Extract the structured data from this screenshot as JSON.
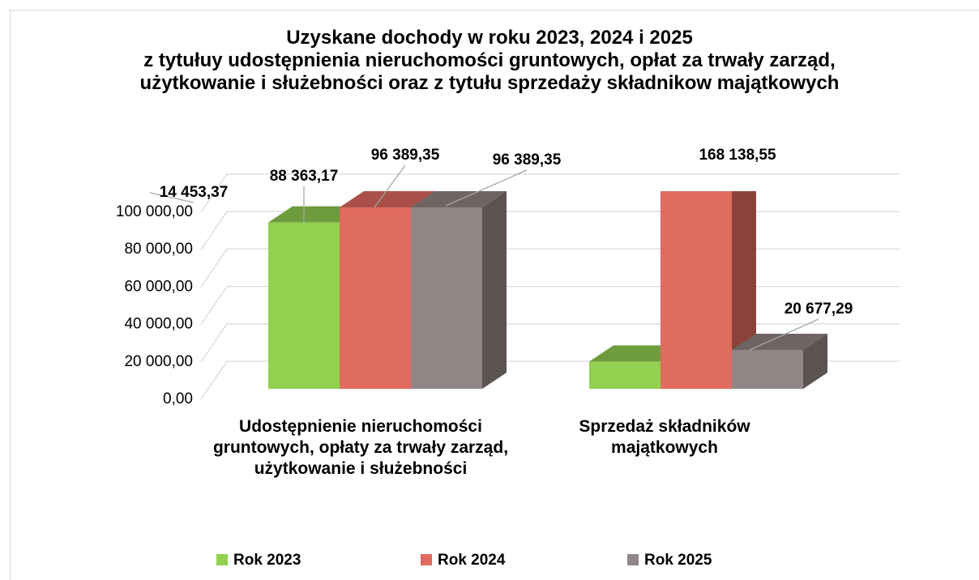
{
  "chart_data": {
    "type": "bar3d",
    "title": "Uzyskane dochody w roku 2023, 2024 i 2025\nz tytułuy udostępnienia nieruchomości gruntowych, opłat za trwały zarząd, użytkowanie i służebności oraz z tytułu sprzedaży składnikow majątkowych",
    "categories": [
      "Udostępnienie nieruchomości gruntowych, opłaty za trwały zarząd, użytkowanie i służebności",
      "Sprzedaż składników majątkowych"
    ],
    "series": [
      {
        "name": "Rok 2023",
        "color": "#92d050",
        "values": [
          88363.17,
          14453.37
        ],
        "value_labels": [
          "88 363,17",
          "14 453,37"
        ]
      },
      {
        "name": "Rok 2024",
        "color": "#e06b5f",
        "values": [
          96389.35,
          168138.55
        ],
        "value_labels": [
          "96 389,35",
          "168 138,55"
        ]
      },
      {
        "name": "Rok 2025",
        "color": "#928585",
        "values": [
          96389.35,
          20677.29
        ],
        "value_labels": [
          "96 389,35",
          "20 677,29"
        ]
      }
    ],
    "ylim": [
      0,
      100000
    ],
    "yticks": [
      {
        "value": 0,
        "label": "0,00"
      },
      {
        "value": 20000,
        "label": "20 000,00"
      },
      {
        "value": 40000,
        "label": "40 000,00"
      },
      {
        "value": 60000,
        "label": "60 000,00"
      },
      {
        "value": 80000,
        "label": "80 000,00"
      },
      {
        "value": 100000,
        "label": "100 000,00"
      }
    ],
    "grid": true,
    "legend": "bottom"
  }
}
